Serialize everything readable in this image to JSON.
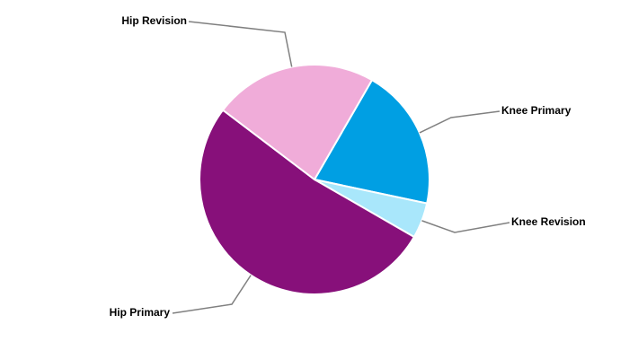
{
  "chart_data": {
    "type": "pie",
    "categories": [
      "Knee Primary",
      "Knee Revision",
      "Hip Primary",
      "Hip Revision"
    ],
    "values": [
      20,
      5,
      52,
      23
    ],
    "colors": [
      "#009fe3",
      "#a9e7fb",
      "#87107a",
      "#f0acd9"
    ]
  }
}
